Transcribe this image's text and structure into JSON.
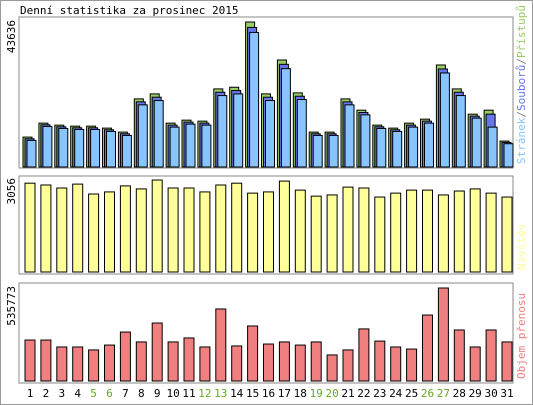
{
  "chart_data": [
    {
      "type": "bar",
      "title": "Denní statistika za prosinec 2015",
      "legend_separator": "/",
      "series": [
        {
          "name": "Přístupů",
          "color": "#99cc66",
          "values": [
            9000,
            13200,
            12600,
            12300,
            12300,
            11700,
            10500,
            20500,
            22000,
            13200,
            14100,
            13800,
            23500,
            24000,
            43636,
            22000,
            32200,
            22300,
            10500,
            10500,
            20500,
            17100,
            12600,
            11700,
            13200,
            14400,
            30700,
            23500,
            15900,
            17100,
            7800
          ]
        },
        {
          "name": "Souborů",
          "color": "#6677ee",
          "values": [
            8500,
            12700,
            12100,
            11800,
            11800,
            11200,
            10000,
            19600,
            21000,
            12600,
            13500,
            13200,
            22500,
            23000,
            42000,
            21000,
            30900,
            21300,
            10000,
            10000,
            19600,
            16400,
            12100,
            11200,
            12600,
            13800,
            29500,
            22500,
            15300,
            15900,
            7400
          ]
        },
        {
          "name": "Stránek",
          "color": "#88c4ff",
          "values": [
            8000,
            12200,
            11600,
            11300,
            11300,
            10700,
            9500,
            18700,
            20000,
            12000,
            12900,
            12600,
            21500,
            22000,
            40500,
            20000,
            29600,
            20300,
            9500,
            9500,
            18700,
            15700,
            11600,
            10700,
            12000,
            13200,
            28300,
            21500,
            14700,
            12000,
            7000
          ]
        }
      ],
      "ylim": [
        0,
        43636
      ],
      "yticks": [
        43636
      ]
    },
    {
      "type": "bar",
      "series": [
        {
          "name": "Návštěv",
          "color": "#ffff99",
          "values": [
            2950,
            2890,
            2790,
            2920,
            2590,
            2660,
            2860,
            2760,
            3056,
            2790,
            2790,
            2660,
            2890,
            2950,
            2620,
            2660,
            3020,
            2720,
            2520,
            2560,
            2820,
            2790,
            2490,
            2620,
            2720,
            2720,
            2560,
            2690,
            2760,
            2620,
            2490
          ]
        }
      ],
      "ylim": [
        0,
        3056
      ],
      "yticks": [
        3056
      ]
    },
    {
      "type": "bar",
      "series": [
        {
          "name": "Objem přenosu",
          "color": "#f08080",
          "values": [
            236000,
            236000,
            196000,
            196000,
            179000,
            207000,
            282000,
            225000,
            334000,
            225000,
            248000,
            196000,
            415000,
            202000,
            317000,
            213000,
            225000,
            207000,
            225000,
            150000,
            179000,
            300000,
            230000,
            196000,
            184000,
            380000,
            535773,
            294000,
            196000,
            294000,
            225000
          ]
        }
      ],
      "ylim": [
        0,
        535773
      ],
      "yticks": [
        535773
      ],
      "categories": [
        "1",
        "2",
        "3",
        "4",
        "5",
        "6",
        "7",
        "8",
        "9",
        "10",
        "11",
        "12",
        "13",
        "14",
        "15",
        "16",
        "17",
        "18",
        "19",
        "20",
        "21",
        "22",
        "23",
        "24",
        "25",
        "26",
        "27",
        "28",
        "29",
        "30",
        "31"
      ],
      "category_colors": [
        "#000",
        "#000",
        "#000",
        "#000",
        "#66aa22",
        "#66aa22",
        "#000",
        "#000",
        "#000",
        "#000",
        "#000",
        "#66aa22",
        "#66aa22",
        "#000",
        "#000",
        "#000",
        "#000",
        "#000",
        "#66aa22",
        "#66aa22",
        "#000",
        "#000",
        "#000",
        "#000",
        "#000",
        "#66aa22",
        "#66aa22",
        "#000",
        "#000",
        "#000",
        "#000"
      ]
    }
  ]
}
